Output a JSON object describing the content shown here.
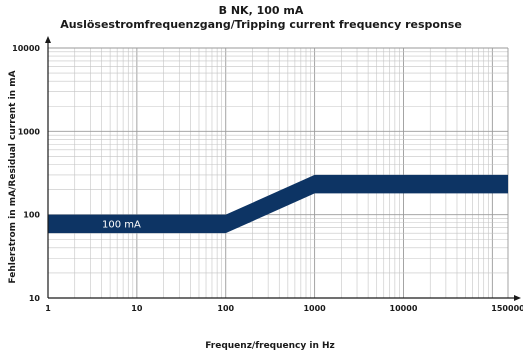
{
  "chart_data": {
    "type": "area",
    "title": "B NK, 100 mA",
    "subtitle": "Auslösestromfrequenzgang/Tripping current frequency response",
    "xlabel": "Frequenz/frequency in Hz",
    "ylabel": "Fehlerstrom in mA/Residual current in mA",
    "x_scale": "log",
    "y_scale": "log",
    "xlim": [
      1,
      150000
    ],
    "ylim": [
      10,
      10000
    ],
    "grid": true,
    "x_ticks": [
      1,
      10,
      100,
      1000,
      10000,
      150000
    ],
    "x_tick_labels": [
      "1",
      "10",
      "100",
      "1000",
      "10000",
      "150000"
    ],
    "y_ticks": [
      10,
      100,
      1000,
      10000
    ],
    "y_tick_labels": [
      "10",
      "100",
      "1000",
      "10000"
    ],
    "series": [
      {
        "label": "100 mA",
        "color": "#0d3464",
        "x": [
          1,
          100,
          1000,
          150000
        ],
        "lower": [
          60,
          60,
          180,
          180
        ],
        "upper": [
          100,
          100,
          300,
          300
        ]
      }
    ]
  }
}
